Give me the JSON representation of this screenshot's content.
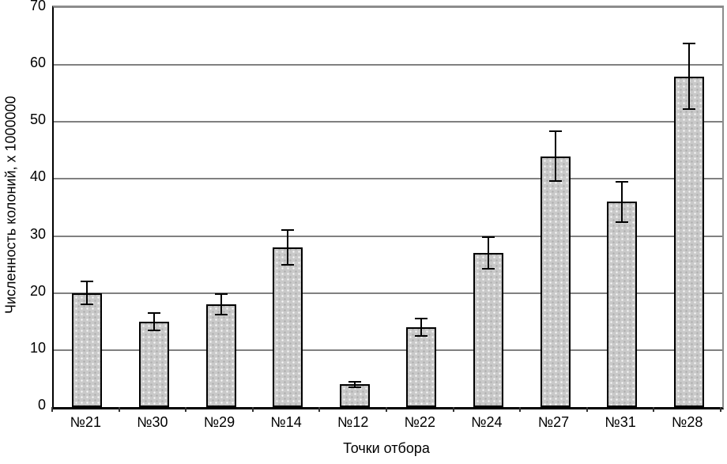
{
  "chart_data": {
    "type": "bar",
    "title": "",
    "categories": [
      "№21",
      "№30",
      "№29",
      "№14",
      "№12",
      "№22",
      "№24",
      "№27",
      "№31",
      "№28"
    ],
    "values": [
      20,
      15,
      18,
      28,
      4,
      14,
      27,
      44,
      36,
      58
    ],
    "error_bars": [
      2,
      1.5,
      1.8,
      3,
      0.5,
      1.5,
      2.8,
      4.4,
      3.5,
      5.8
    ],
    "xlabel": "Точки отбора",
    "ylabel": "Численность колоний, х 1000000",
    "ylim": [
      0,
      70
    ],
    "yticks": [
      0,
      10,
      20,
      30,
      40,
      50,
      60,
      70
    ],
    "grid": true,
    "gridline_step": 10,
    "legend_position": "none"
  },
  "colors": {
    "bar_fill": "#c9c9c9",
    "bar_border": "#000000",
    "gridline": "#808080",
    "axis": "#000000",
    "error_bar": "#000000",
    "plot_frame": "#8c8c8c",
    "background": "#ffffff",
    "text": "#000000"
  }
}
